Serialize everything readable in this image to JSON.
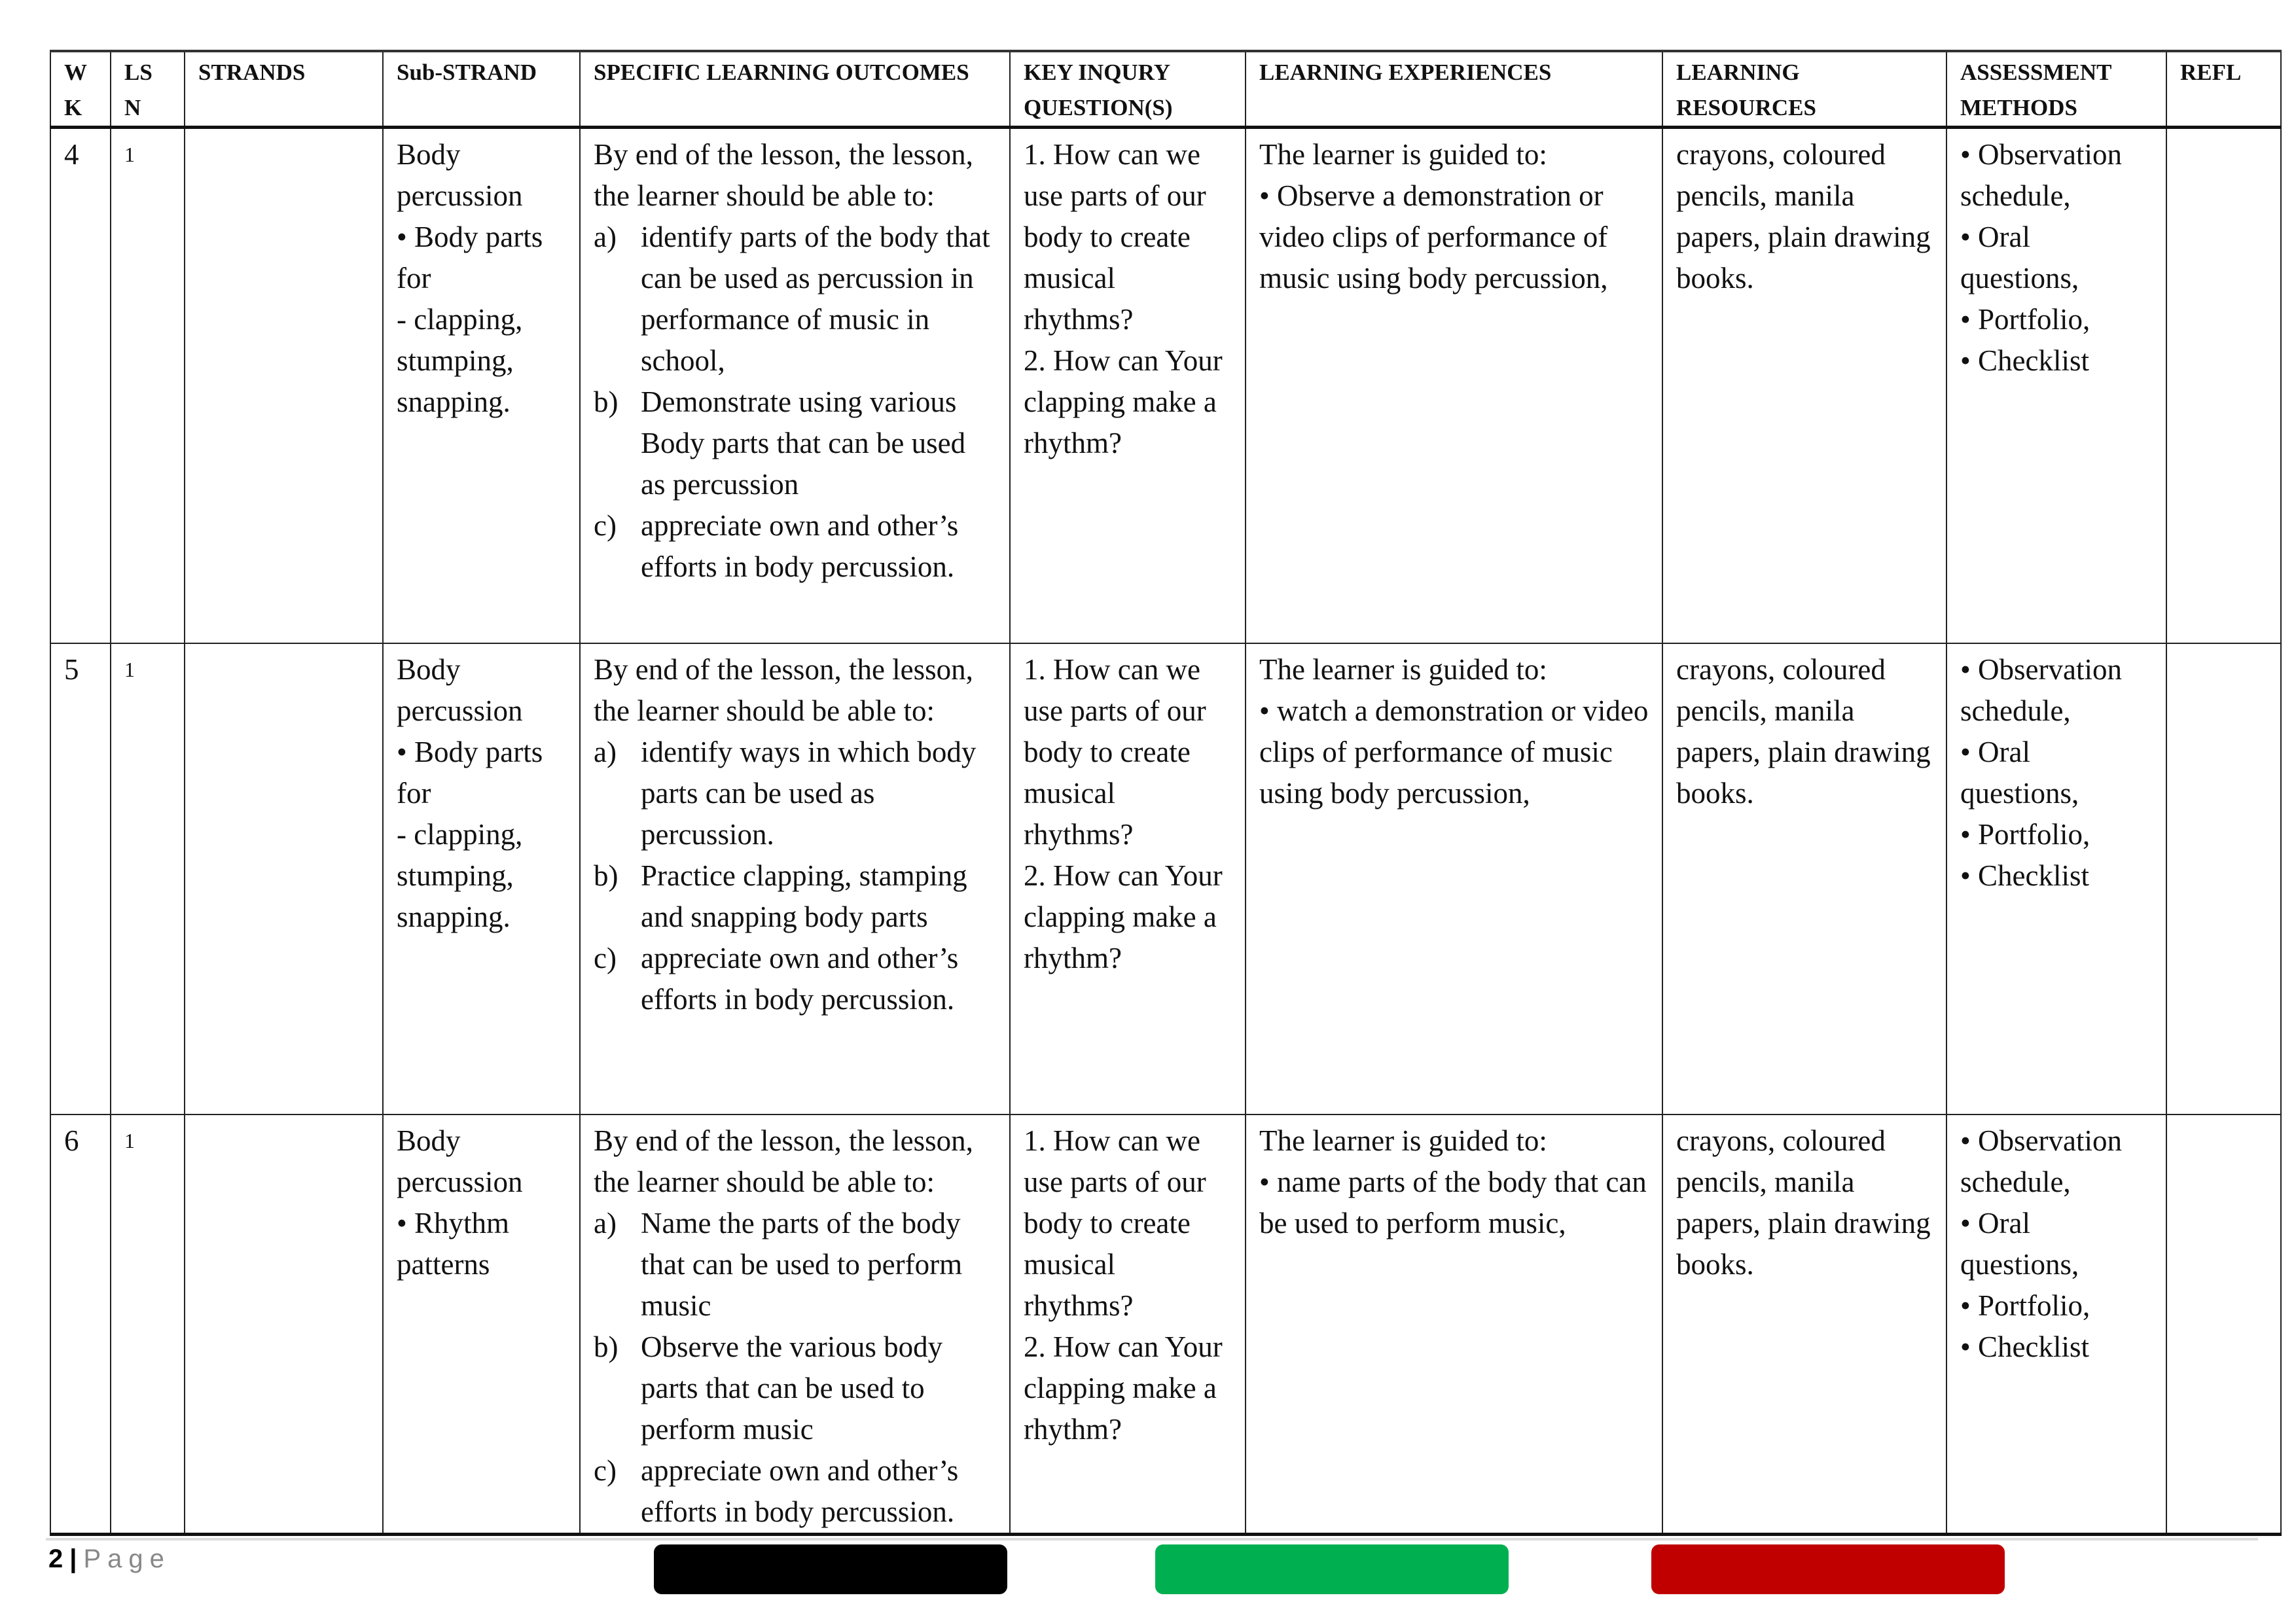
{
  "headers": [
    "W K",
    "LS N",
    "STRANDS",
    "Sub-STRAND",
    "SPECIFIC LEARNING OUTCOMES",
    "KEY INQURY QUESTION(S)",
    "LEARNING EXPERIENCES",
    "LEARNING RESOURCES",
    "ASSESSMENT METHODS",
    "REFL"
  ],
  "rows": [
    {
      "wk": "4",
      "lsn": "1",
      "strand": "",
      "substrand": [
        "Body percussion",
        "• Body parts for",
        "- clapping, stumping, snapping."
      ],
      "outcomes_intro": "By end of the lesson, the lesson, the learner should be able to:",
      "outcomes": [
        {
          "label": "a)",
          "text": "identify parts of the body that can be used as percussion in performance of music in school,"
        },
        {
          "label": "b)",
          "text": "Demonstrate using various Body parts that can be used as percussion"
        },
        {
          "label": "c)",
          "text": "appreciate own and other’s efforts in body percussion."
        }
      ],
      "questions": [
        "1. How can we use parts of our body to create musical rhythms?",
        "2. How can Your clapping make a rhythm?"
      ],
      "experiences": [
        "The learner is guided to:",
        "• Observe a demonstration or video clips of performance of music using body percussion,"
      ],
      "resources": "crayons, coloured pencils, manila papers, plain drawing books.",
      "assessment": [
        "• Observation schedule,",
        "• Oral questions,",
        "• Portfolio,",
        "• Checklist"
      ],
      "reflection": ""
    },
    {
      "wk": "5",
      "lsn": "1",
      "strand": "",
      "substrand": [
        "Body percussion",
        "• Body parts for",
        "- clapping, stumping, snapping."
      ],
      "outcomes_intro": "By end of the lesson, the lesson, the learner should be able to:",
      "outcomes": [
        {
          "label": "a)",
          "text": "identify ways in which body parts can be used as percussion."
        },
        {
          "label": "b)",
          "text": "Practice clapping, stamping and snapping body parts"
        },
        {
          "label": "c)",
          "text": "appreciate own and other’s efforts in body percussion."
        }
      ],
      "questions": [
        "1. How can we use parts of our body to create musical rhythms?",
        "2. How can Your clapping make a rhythm?"
      ],
      "experiences": [
        "The learner is guided to:",
        "• watch a demonstration or video clips of performance of music using body percussion,"
      ],
      "resources": "crayons, coloured pencils, manila papers, plain drawing books.",
      "assessment": [
        "• Observation schedule,",
        "• Oral questions,",
        "• Portfolio,",
        "• Checklist"
      ],
      "reflection": ""
    },
    {
      "wk": "6",
      "lsn": "1",
      "strand": "",
      "substrand": [
        "Body percussion",
        "• Rhythm patterns"
      ],
      "outcomes_intro": "By end of the lesson, the lesson, the learner should be able to:",
      "outcomes": [
        {
          "label": "a)",
          "text": "Name the parts of the body that can be used to perform music"
        },
        {
          "label": "b)",
          "text": "Observe the various body parts that can be used to perform music"
        },
        {
          "label": "c)",
          "text": "appreciate own and other’s efforts in body percussion."
        }
      ],
      "questions": [
        "1. How can we use parts of our body to create musical rhythms?",
        "2. How can Your clapping make a rhythm?"
      ],
      "experiences": [
        "The learner is guided to:",
        "• name parts of the body that can be used to perform music,"
      ],
      "resources": "crayons, coloured pencils, manila papers, plain drawing books.",
      "assessment": [
        "• Observation schedule,",
        "• Oral questions,",
        "• Portfolio,",
        "• Checklist"
      ],
      "reflection": ""
    }
  ],
  "footer": {
    "page_number": "2",
    "separator": "|",
    "page_label": "Page"
  },
  "flag_colors": [
    "#000000",
    "#00b050",
    "#c00000"
  ]
}
